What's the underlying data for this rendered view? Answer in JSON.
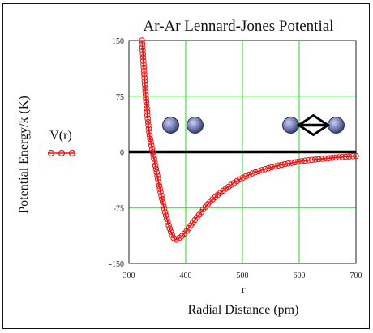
{
  "chart_data": {
    "type": "line",
    "title": "Ar-Ar Lennard-Jones Potential",
    "xlabel_top": "r",
    "xlabel": "Radial Distance (pm)",
    "ylabel": "Potential Energy/k (K)",
    "xlim": [
      300,
      700
    ],
    "ylim": [
      -150,
      150
    ],
    "x_ticks": [
      "300",
      "400",
      "500",
      "600",
      "700"
    ],
    "y_ticks": [
      "150",
      "75",
      "0",
      "-75",
      "-150"
    ],
    "grid": true,
    "grid_color": "#33cc33",
    "legend_position": "left",
    "series": [
      {
        "name": "V(r)",
        "color": "#ee1111",
        "marker": "open-circle",
        "lj_epsilon_K": 120,
        "lj_sigma_pm": 340,
        "x": [
          323,
          330,
          336,
          342,
          348,
          356,
          365,
          375,
          382,
          390,
          400,
          420,
          450,
          500,
          550,
          600,
          650,
          700
        ],
        "y": [
          150,
          72,
          25,
          0,
          -24,
          -55,
          -85,
          -110,
          -118,
          -115,
          -108,
          -88,
          -62,
          -35,
          -21,
          -13,
          -8.5,
          -5.5
        ]
      }
    ],
    "illustration": {
      "atom_color": "#7a82b8",
      "left_pair_center_x": 395,
      "right_pair_center_x": 625,
      "arrow": "double-headed"
    }
  }
}
